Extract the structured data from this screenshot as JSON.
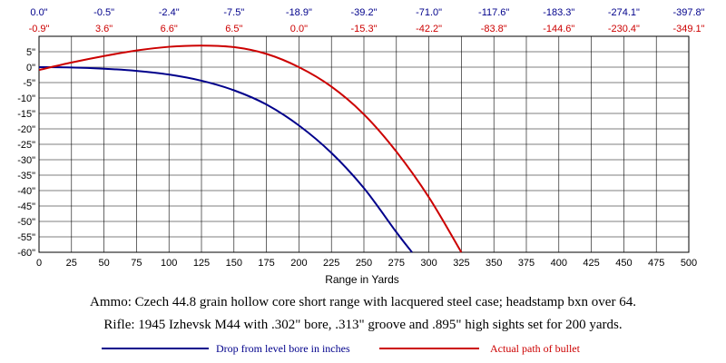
{
  "chart_data": {
    "type": "line",
    "xlabel": "Range in Yards",
    "ylabel": "",
    "xlim": [
      0,
      500
    ],
    "ylim": [
      -60,
      10
    ],
    "grid": true,
    "x_ticks": [
      0,
      25,
      50,
      75,
      100,
      125,
      150,
      175,
      200,
      225,
      250,
      275,
      300,
      325,
      350,
      375,
      400,
      425,
      450,
      475,
      500
    ],
    "x_tick_labels": [
      "0",
      "25",
      "50",
      "75",
      "100",
      "125",
      "150",
      "175",
      "200",
      "225",
      "250",
      "275",
      "300",
      "325",
      "350",
      "375",
      "400",
      "425",
      "450",
      "475",
      "500"
    ],
    "y_ticks": [
      5,
      0,
      -5,
      -10,
      -15,
      -20,
      -25,
      -30,
      -35,
      -40,
      -45,
      -50,
      -55,
      -60
    ],
    "y_tick_labels": [
      "5\"",
      "0\"",
      "-5\"",
      "-10\"",
      "-15\"",
      "-20\"",
      "-25\"",
      "-30\"",
      "-35\"",
      "-40\"",
      "-45\"",
      "-50\"",
      "-55\"",
      "-60\""
    ],
    "top_annotations_blue": [
      {
        "x": 0,
        "label": "0.0\""
      },
      {
        "x": 50,
        "label": "-0.5\""
      },
      {
        "x": 100,
        "label": "-2.4\""
      },
      {
        "x": 150,
        "label": "-7.5\""
      },
      {
        "x": 200,
        "label": "-18.9\""
      },
      {
        "x": 250,
        "label": "-39.2\""
      },
      {
        "x": 300,
        "label": "-71.0\""
      },
      {
        "x": 350,
        "label": "-117.6\""
      },
      {
        "x": 400,
        "label": "-183.3\""
      },
      {
        "x": 450,
        "label": "-274.1\""
      },
      {
        "x": 500,
        "label": "-397.8\""
      }
    ],
    "top_annotations_red": [
      {
        "x": 0,
        "label": "-0.9\""
      },
      {
        "x": 50,
        "label": "3.6\""
      },
      {
        "x": 100,
        "label": "6.6\""
      },
      {
        "x": 150,
        "label": "6.5\""
      },
      {
        "x": 200,
        "label": "0.0\""
      },
      {
        "x": 250,
        "label": "-15.3\""
      },
      {
        "x": 300,
        "label": "-42.2\""
      },
      {
        "x": 350,
        "label": "-83.8\""
      },
      {
        "x": 400,
        "label": "-144.6\""
      },
      {
        "x": 450,
        "label": "-230.4\""
      },
      {
        "x": 500,
        "label": "-349.1\""
      }
    ],
    "series": [
      {
        "name": "Drop from level bore in inches",
        "color": "#00008b",
        "x": [
          0,
          25,
          50,
          75,
          100,
          125,
          150,
          175,
          200,
          225,
          250,
          275,
          287
        ],
        "y": [
          0,
          -0.1,
          -0.5,
          -1.2,
          -2.4,
          -4.4,
          -7.5,
          -12.1,
          -18.9,
          -27.8,
          -39.2,
          -53.5,
          -60
        ]
      },
      {
        "name": "Actual path of bullet",
        "color": "#cc0000",
        "x": [
          0,
          25,
          50,
          75,
          100,
          125,
          150,
          175,
          200,
          225,
          250,
          275,
          300,
          325
        ],
        "y": [
          -0.9,
          1.5,
          3.6,
          5.4,
          6.6,
          7.0,
          6.5,
          4.3,
          0.0,
          -6.3,
          -15.3,
          -27.4,
          -42.2,
          -60
        ]
      }
    ]
  },
  "captions": {
    "ammo": "Ammo:  Czech 44.8 grain hollow core short range with lacquered steel case; headstamp bxn over 64.",
    "rifle": "Rifle:  1945 Izhevsk M44 with .302\" bore, .313\" groove and .895\" high sights set for 200 yards."
  },
  "legend": {
    "blue_label": "Drop from level bore in inches",
    "red_label": "Actual path of bullet"
  },
  "colors": {
    "blue": "#00008b",
    "red": "#cc0000",
    "grid": "#000000"
  }
}
